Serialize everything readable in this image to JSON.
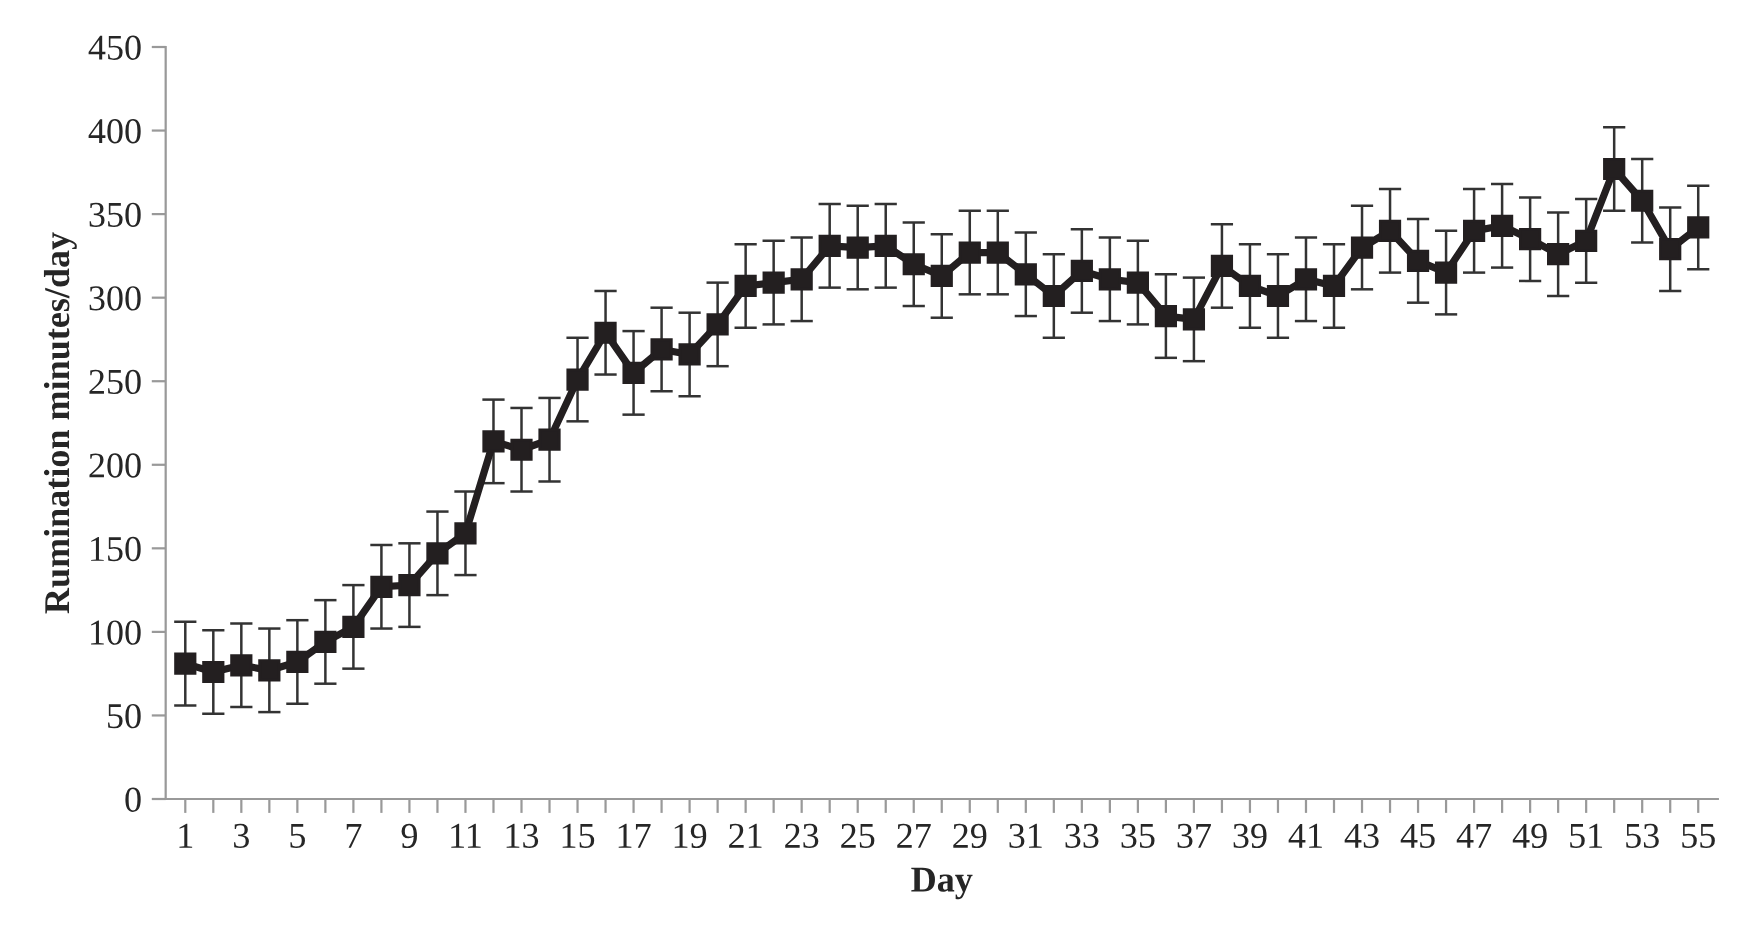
{
  "chart_data": {
    "type": "line",
    "xlabel": "Day",
    "ylabel": "Rumination minutes/day",
    "categories": [
      "1",
      null,
      "3",
      null,
      "5",
      null,
      "7",
      null,
      "9",
      null,
      "11",
      null,
      "13",
      null,
      "15",
      null,
      "17",
      null,
      "19",
      null,
      "21",
      null,
      "23",
      null,
      "25",
      null,
      "27",
      null,
      "29",
      null,
      "31",
      null,
      "33",
      null,
      "35",
      null,
      "37",
      null,
      "39",
      null,
      "41",
      null,
      "43",
      null,
      "45",
      null,
      "47",
      null,
      "49",
      null,
      "51",
      null,
      "53",
      null,
      "55"
    ],
    "series": [
      {
        "color": "#231f20",
        "values": [
          81,
          76,
          80,
          77,
          82,
          94,
          103,
          127,
          128,
          147,
          159,
          214,
          209,
          215,
          251,
          279,
          255,
          269,
          266,
          284,
          307,
          309,
          311,
          331,
          330,
          331,
          320,
          313,
          327,
          327,
          314,
          301,
          316,
          311,
          309,
          289,
          287,
          319,
          307,
          301,
          311,
          307,
          330,
          340,
          322,
          315,
          340,
          343,
          335,
          326,
          334,
          377,
          358,
          329,
          342
        ],
        "errors": [
          25,
          25,
          25,
          25,
          25,
          25,
          25,
          25,
          25,
          25,
          25,
          25,
          25,
          25,
          25,
          25,
          25,
          25,
          25,
          25,
          25,
          25,
          25,
          25,
          25,
          25,
          25,
          25,
          25,
          25,
          25,
          25,
          25,
          25,
          25,
          25,
          25,
          25,
          25,
          25,
          25,
          25,
          25,
          25,
          25,
          25,
          25,
          25,
          25,
          25,
          25,
          25,
          25,
          25,
          25
        ]
      }
    ],
    "ylim": [
      0,
      450
    ],
    "yticks": [
      0,
      50,
      100,
      150,
      200,
      250,
      300,
      350,
      400,
      450
    ],
    "grid": false,
    "legend": false,
    "marker": "square",
    "line_style": "solid"
  }
}
